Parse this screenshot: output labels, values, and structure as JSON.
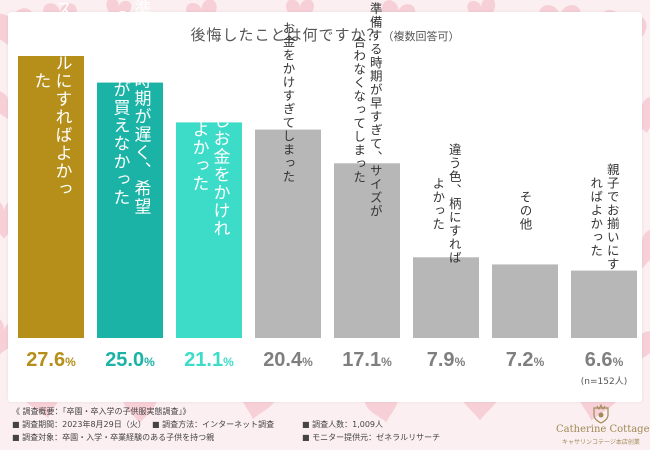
{
  "title": "後悔したことは何ですか？",
  "title_note": "（複数回答可）",
  "colors": {
    "background": "#fbeff1",
    "heart": "#f6c6cd",
    "bar_gold": "#b58f1a",
    "bar_teal_dark": "#1bb3a6",
    "bar_teal_light": "#3ddcc8",
    "bar_gray": "#b7b7b7",
    "text_on_gold": "#ffffff",
    "text_on_gray": "#333333",
    "label_gray": "#7f7f7f"
  },
  "chart_data": {
    "type": "bar",
    "categories": [
      "違うスタイルにすればよかった",
      "準備する時期が遅く、希望の子供服が買えなかった",
      "もう少しお金をかければよかった",
      "お金をかけすぎてしまった",
      "準備する時期が早すぎて、サイズが合わなくなってしまった",
      "違う色、柄にすればよかった",
      "その他",
      "親子でお揃いにすればよかった"
    ],
    "values": [
      27.6,
      25.0,
      21.1,
      20.4,
      17.1,
      7.9,
      7.2,
      6.6
    ],
    "value_labels": [
      "27.6",
      "25.0",
      "21.1",
      "20.4",
      "17.1",
      "7.9",
      "7.2",
      "6.6"
    ],
    "unit": "%",
    "n_label": "(n=152人)",
    "ylim": [
      0,
      27.6
    ],
    "grid": false,
    "bar_colors": [
      "#b58f1a",
      "#1bb3a6",
      "#3ddcc8",
      "#b7b7b7",
      "#b7b7b7",
      "#b7b7b7",
      "#b7b7b7",
      "#b7b7b7"
    ],
    "label_colors": [
      "#b58f1a",
      "#1bb3a6",
      "#3ddcc8",
      "#7f7f7f",
      "#7f7f7f",
      "#7f7f7f",
      "#7f7f7f",
      "#7f7f7f"
    ]
  },
  "footer": {
    "title": "《 調査概要：「卒園・卒入学の子供服実態調査」》",
    "items": [
      "調査期間：2023年8月29日（火）",
      "調査方法：インターネット調査",
      "調査人数：1,009人",
      "調査対象：卒園・入学・卒業経験のある子供を持つ親",
      "モニター提供元：ゼネラルリサーチ"
    ]
  },
  "logo": {
    "name": "Catherine Cottage",
    "sub": "キャサリンコテージ本店创業"
  }
}
